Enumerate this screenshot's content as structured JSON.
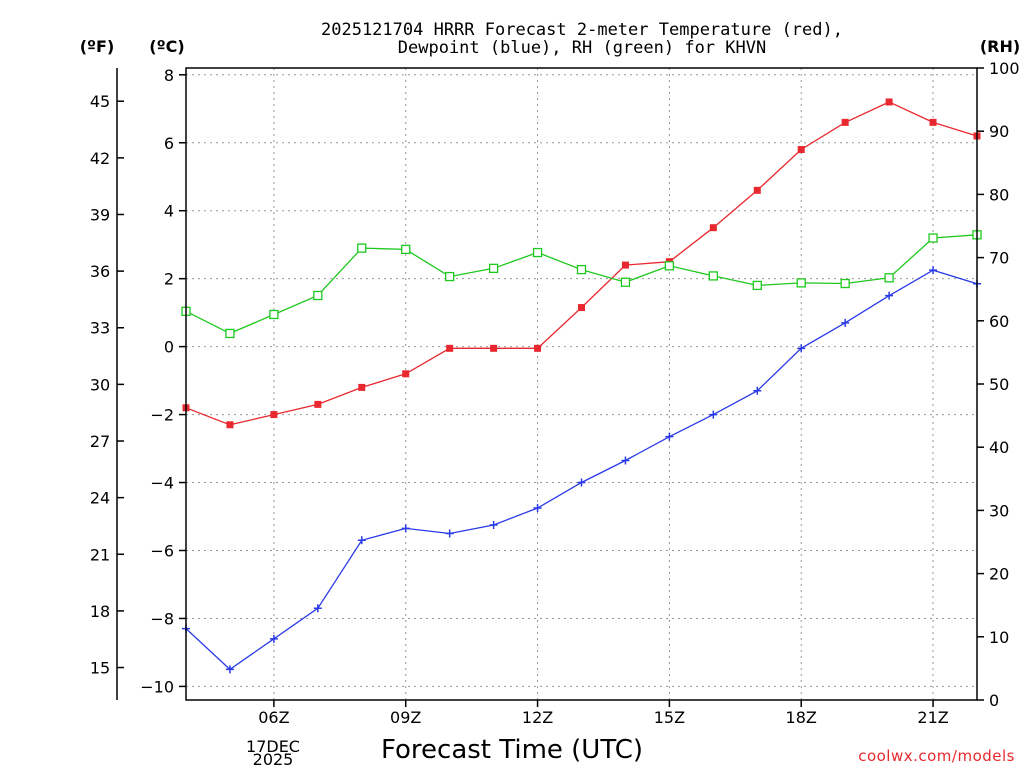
{
  "chart_data": {
    "type": "line",
    "title_line1": "2025121704 HRRR Forecast 2-meter Temperature (red),",
    "title_line2": "Dewpoint (blue), RH (green) for KHVN",
    "xlabel": "Forecast Time (UTC)",
    "unit_f": "(ºF)",
    "unit_c": "(ºC)",
    "unit_rh": "(RH)",
    "date_line1": "17DEC",
    "date_line2": "2025",
    "credit": "coolwx.com/models",
    "hours": [
      4,
      5,
      6,
      7,
      8,
      9,
      10,
      11,
      12,
      13,
      14,
      15,
      16,
      17,
      18,
      19,
      20,
      21,
      22
    ],
    "x_ticks": [
      {
        "hour": 6,
        "label": "06Z"
      },
      {
        "hour": 9,
        "label": "09Z"
      },
      {
        "hour": 12,
        "label": "12Z"
      },
      {
        "hour": 15,
        "label": "15Z"
      },
      {
        "hour": 18,
        "label": "18Z"
      },
      {
        "hour": 21,
        "label": "21Z"
      }
    ],
    "x_range": [
      4,
      22
    ],
    "y_left_c_range": [
      -10.4,
      8.2
    ],
    "y_left_c_ticks": [
      -10,
      -8,
      -6,
      -4,
      -2,
      0,
      2,
      4,
      6,
      8
    ],
    "y_left_c_tick_labels": [
      "−10",
      "−8",
      "−6",
      "−4",
      "−2",
      "0",
      "2",
      "4",
      "6",
      "8"
    ],
    "y_left_f_ticks": [
      15,
      18,
      21,
      24,
      27,
      30,
      33,
      36,
      39,
      42,
      45
    ],
    "y_right_rh_range": [
      0,
      100
    ],
    "y_right_rh_ticks": [
      0,
      10,
      20,
      30,
      40,
      50,
      60,
      70,
      80,
      90,
      100
    ],
    "series": [
      {
        "name": "Temperature",
        "color": "#e8282e",
        "marker": "filled-square",
        "values": [
          -1.8,
          -2.3,
          -2.0,
          -1.7,
          -1.2,
          -0.8,
          -0.05,
          -0.05,
          -0.05,
          1.15,
          2.4,
          2.5,
          3.5,
          4.6,
          5.8,
          6.6,
          7.2,
          6.6,
          6.2
        ]
      },
      {
        "name": "Dewpoint",
        "color": "#2a3ae8",
        "marker": "plus",
        "values": [
          -8.3,
          -9.5,
          -8.6,
          -7.7,
          -5.7,
          -5.35,
          -5.5,
          -5.25,
          -4.75,
          -4.0,
          -3.35,
          -2.65,
          -2.0,
          -1.3,
          -0.05,
          0.7,
          1.5,
          2.25,
          1.85
        ]
      },
      {
        "name": "RH",
        "color": "#1ec81e",
        "marker": "open-square",
        "values": [
          61.5,
          58,
          61,
          64,
          71.5,
          71.3,
          67,
          68.3,
          70.8,
          68.1,
          66.1,
          68.7,
          67.1,
          65.6,
          66,
          65.9,
          66.8,
          73.1,
          73.6
        ]
      }
    ]
  }
}
